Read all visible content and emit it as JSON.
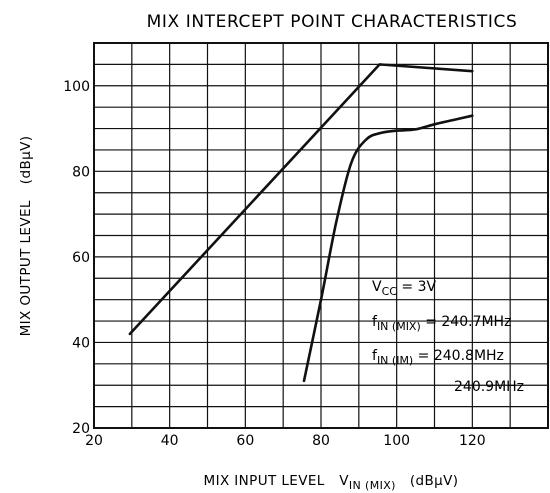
{
  "chart_data": {
    "type": "line",
    "title": "MIX INTERCEPT POINT CHARACTERISTICS",
    "xlabel": {
      "main": "MIX INPUT LEVEL",
      "symbol": "V",
      "symbol_sub": "IN (MIX)",
      "unit": "(dBμV)"
    },
    "ylabel": {
      "main": "MIX OUTPUT LEVEL",
      "unit": "(dBμV)"
    },
    "xlim": [
      20,
      140
    ],
    "ylim": [
      20,
      110
    ],
    "x_ticks": [
      20,
      40,
      60,
      80,
      100,
      120
    ],
    "y_ticks": [
      20,
      40,
      60,
      80,
      100
    ],
    "grid": true,
    "series": [
      {
        "points": [
          [
            29.5,
            42
          ],
          [
            95.5,
            105
          ],
          [
            120,
            103.4
          ]
        ]
      },
      {
        "points": [
          [
            75.5,
            31
          ],
          [
            80,
            50
          ],
          [
            84,
            68
          ],
          [
            88,
            82
          ],
          [
            92,
            87.5
          ],
          [
            96,
            89
          ],
          [
            100,
            89.5
          ],
          [
            105,
            89.8
          ],
          [
            110,
            91
          ],
          [
            115,
            92
          ],
          [
            120,
            93
          ]
        ]
      }
    ],
    "annotations": {
      "vcc": {
        "sym": "V",
        "sub": "CC",
        "rest": " = 3V"
      },
      "fmix": {
        "sym": "f",
        "sub": "IN (MIX)",
        "rest": " = 240.7MHz"
      },
      "fim": {
        "sym": "f",
        "sub": "IN (IM)",
        "rest": " = 240.8MHz"
      },
      "fim2": "240.9MHz"
    }
  }
}
